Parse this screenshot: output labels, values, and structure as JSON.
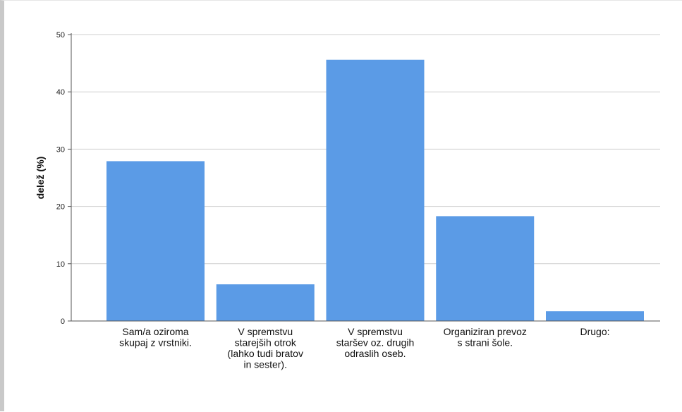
{
  "chart_data": {
    "type": "bar",
    "categories": [
      [
        "Sam/a oziroma",
        "skupaj z vrstniki."
      ],
      [
        "V spremstvu",
        "starejših otrok",
        "(lahko tudi bratov",
        "in sester)."
      ],
      [
        "V spremstvu",
        "staršev oz. drugih",
        "odraslih oseb."
      ],
      [
        "Organiziran prevoz",
        "s strani šole."
      ],
      [
        "Drugo:"
      ]
    ],
    "values": [
      27.9,
      6.4,
      45.6,
      18.3,
      1.7
    ],
    "ylabel": "delež (%)",
    "xlabel": "",
    "ylim": [
      0,
      50
    ],
    "yticks": [
      0,
      10,
      20,
      30,
      40,
      50
    ],
    "grid": true,
    "bar_color": "#5b9be6",
    "grid_color": "#cfcfcf"
  }
}
